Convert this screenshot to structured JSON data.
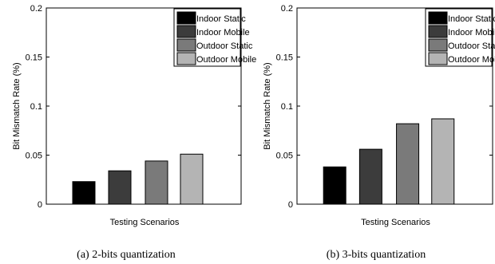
{
  "chart_data": [
    {
      "type": "bar",
      "caption": "(a) 2-bits quantization",
      "xlabel": "Testing Scenarios",
      "ylabel": "Bit Mismatch Rate (%)",
      "ylim": [
        0,
        0.2
      ],
      "yticks": [
        "0",
        "0.05",
        "0.1",
        "0.15",
        "0.2"
      ],
      "legend_placement": "top-right",
      "series": [
        {
          "name": "Indoor Static",
          "value": 0.023,
          "color": "#000000"
        },
        {
          "name": "Indoor Mobile",
          "value": 0.034,
          "color": "#3c3c3c"
        },
        {
          "name": "Outdoor Static",
          "value": 0.044,
          "color": "#7a7a7a"
        },
        {
          "name": "Outdoor Mobile",
          "value": 0.051,
          "color": "#b4b4b4"
        }
      ]
    },
    {
      "type": "bar",
      "caption": "(b) 3-bits quantization",
      "xlabel": "Testing Scenarios",
      "ylabel": "Bit Mismatch Rate (%)",
      "ylim": [
        0,
        0.2
      ],
      "yticks": [
        "0",
        "0.05",
        "0.1",
        "0.15",
        "0.2"
      ],
      "legend_placement": "top-right",
      "series": [
        {
          "name": "Indoor Static",
          "value": 0.038,
          "color": "#000000"
        },
        {
          "name": "Indoor Mobile",
          "value": 0.056,
          "color": "#3c3c3c"
        },
        {
          "name": "Outdoor Static",
          "value": 0.082,
          "color": "#7a7a7a"
        },
        {
          "name": "Outdoor Mobile",
          "value": 0.087,
          "color": "#b4b4b4"
        }
      ]
    }
  ]
}
